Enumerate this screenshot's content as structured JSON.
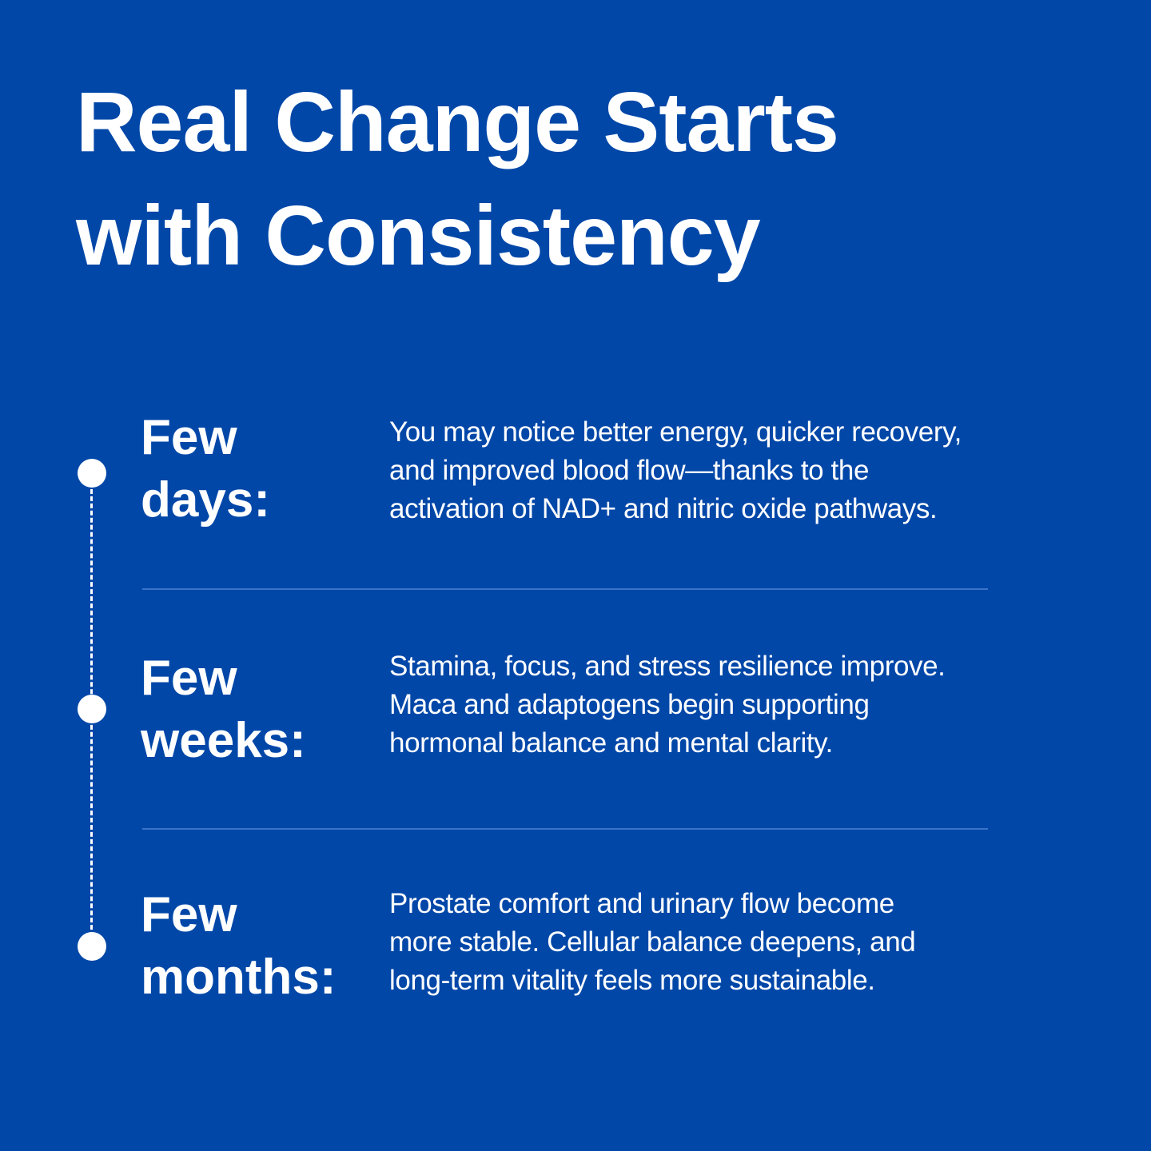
{
  "title": {
    "line1": "Real Change Starts",
    "line2": "with Consistency"
  },
  "colors": {
    "background": "#0047A8",
    "text": "#FFFFFF",
    "divider": "#3A74C8"
  },
  "timeline": [
    {
      "label_line1": "Few",
      "label_line2": "days:",
      "desc_lines": [
        "You may notice better energy, quicker recovery,",
        "and improved blood flow—thanks to the",
        "activation of NAD+ and nitric oxide pathways."
      ]
    },
    {
      "label_line1": "Few",
      "label_line2": "weeks:",
      "desc_lines": [
        "Stamina, focus, and stress resilience improve.",
        "Maca and adaptogens begin supporting",
        "hormonal balance and mental clarity."
      ]
    },
    {
      "label_line1": "Few",
      "label_line2": "months:",
      "desc_lines": [
        "Prostate comfort and urinary flow become",
        "more stable. Cellular balance deepens, and",
        "long-term vitality feels more sustainable."
      ]
    }
  ]
}
